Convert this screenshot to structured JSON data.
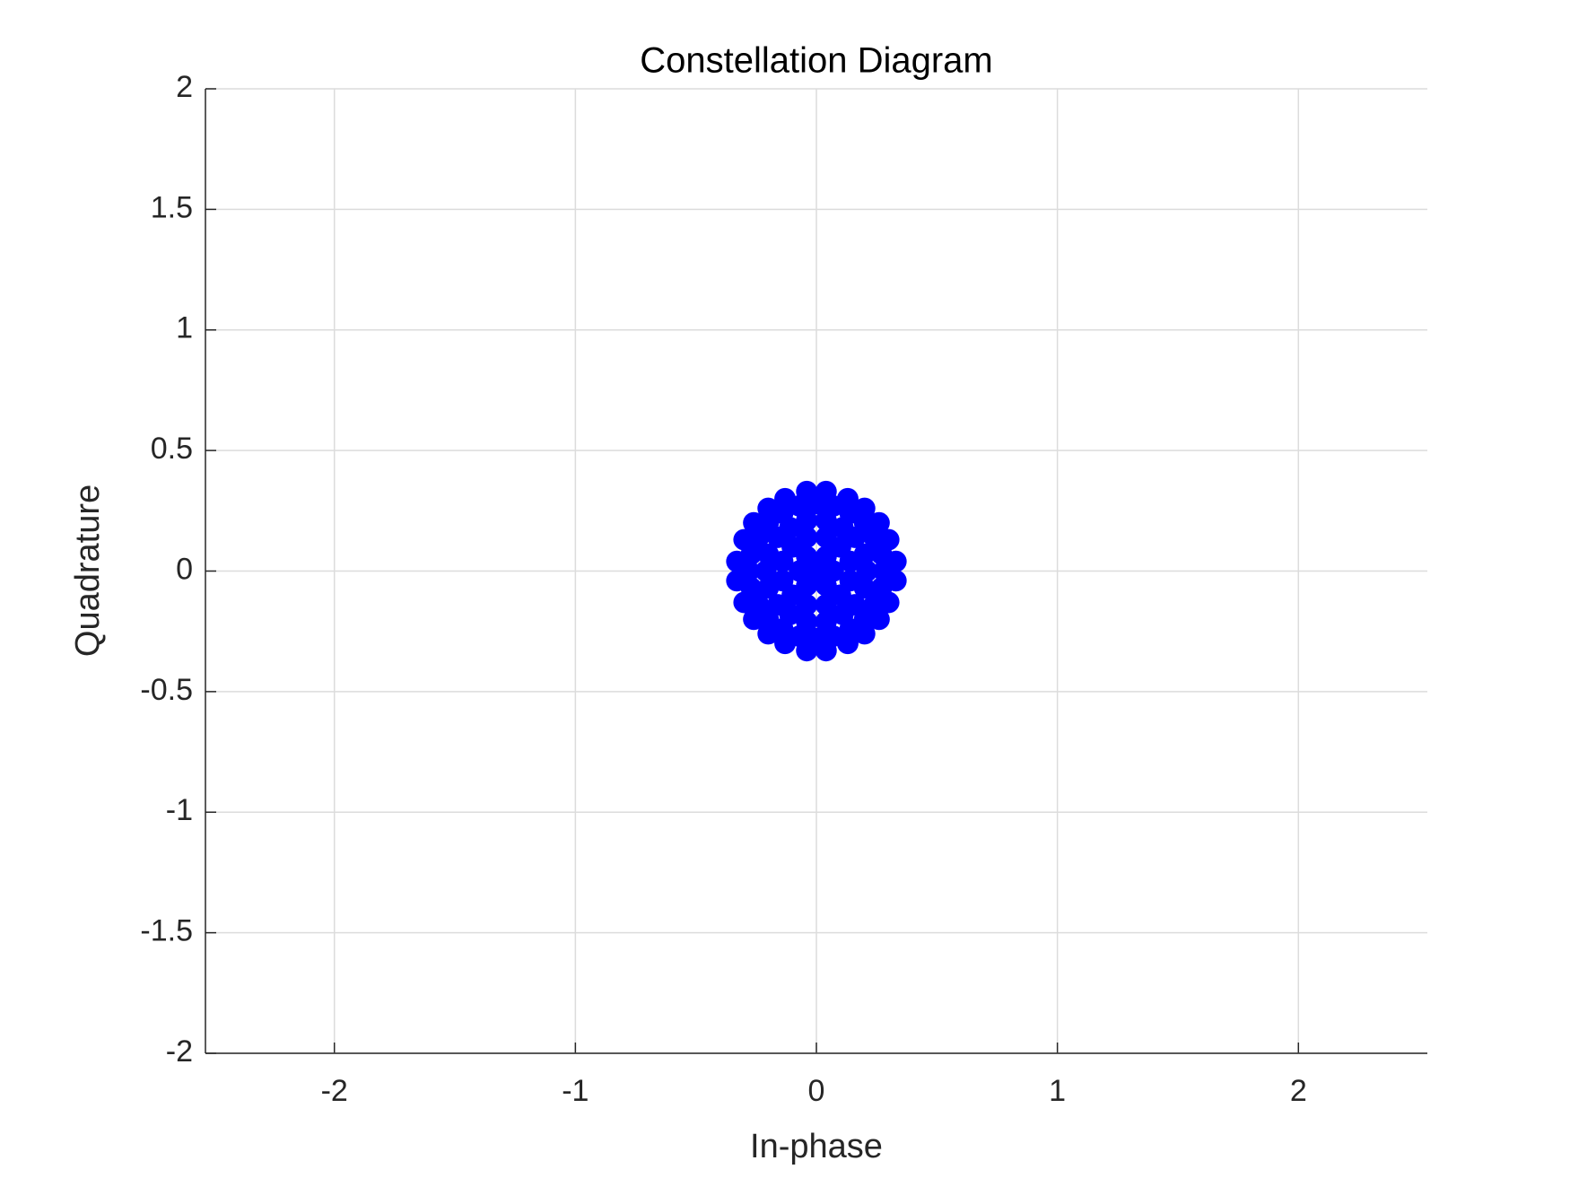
{
  "chart_data": {
    "type": "scatter",
    "title": "Constellation Diagram",
    "xlabel": "In-phase",
    "ylabel": "Quadrature",
    "xlim": [
      -2.535,
      2.535
    ],
    "ylim": [
      -2,
      2
    ],
    "xticks": [
      -2,
      -1,
      0,
      1,
      2
    ],
    "yticks": [
      -2,
      -1.5,
      -1,
      -0.5,
      0,
      0.5,
      1,
      1.5,
      2
    ],
    "grid": true,
    "color": "#0000ff",
    "x": [
      0,
      0.07,
      0.04,
      -0.04,
      -0.07,
      -0.04,
      0.04,
      0.14,
      0.1,
      0.04,
      -0.04,
      -0.1,
      -0.14,
      -0.14,
      -0.1,
      -0.04,
      0.04,
      0.1,
      0.14,
      0.21,
      0.2,
      0.16,
      0.11,
      0.04,
      -0.04,
      -0.11,
      -0.16,
      -0.2,
      -0.21,
      -0.2,
      -0.16,
      -0.11,
      -0.04,
      0.04,
      0.11,
      0.16,
      0.2,
      0.28,
      0.27,
      0.24,
      0.2,
      0.14,
      0.07,
      0,
      -0.07,
      -0.14,
      -0.2,
      -0.24,
      -0.27,
      -0.28,
      -0.27,
      -0.24,
      -0.2,
      -0.14,
      -0.07,
      0,
      0.07,
      0.14,
      0.2,
      0.24,
      0.27,
      0.33,
      0.3,
      0.26,
      0.2,
      0.13,
      0.04,
      -0.04,
      -0.13,
      -0.2,
      -0.26,
      -0.3,
      -0.33,
      -0.33,
      -0.3,
      -0.26,
      -0.2,
      -0.13,
      -0.04,
      0.04,
      0.13,
      0.2,
      0.26,
      0.3,
      0.33
    ],
    "y": [
      0,
      0,
      0.06,
      0.06,
      0,
      -0.06,
      -0.06,
      0.04,
      0.1,
      0.14,
      0.14,
      0.1,
      0.04,
      -0.04,
      -0.1,
      -0.14,
      -0.14,
      -0.1,
      -0.04,
      0,
      0.07,
      0.14,
      0.18,
      0.21,
      0.21,
      0.18,
      0.14,
      0.07,
      0,
      -0.07,
      -0.14,
      -0.18,
      -0.21,
      -0.21,
      -0.18,
      -0.14,
      -0.07,
      0,
      0.07,
      0.14,
      0.2,
      0.24,
      0.27,
      0.28,
      0.27,
      0.24,
      0.2,
      0.14,
      0.07,
      0,
      -0.07,
      -0.14,
      -0.2,
      -0.24,
      -0.27,
      -0.28,
      -0.27,
      -0.24,
      -0.2,
      -0.14,
      -0.07,
      0.04,
      0.13,
      0.2,
      0.26,
      0.3,
      0.33,
      0.33,
      0.3,
      0.26,
      0.2,
      0.13,
      0.04,
      -0.04,
      -0.13,
      -0.2,
      -0.26,
      -0.3,
      -0.33,
      -0.33,
      -0.3,
      -0.26,
      -0.2,
      -0.13,
      -0.04
    ]
  }
}
